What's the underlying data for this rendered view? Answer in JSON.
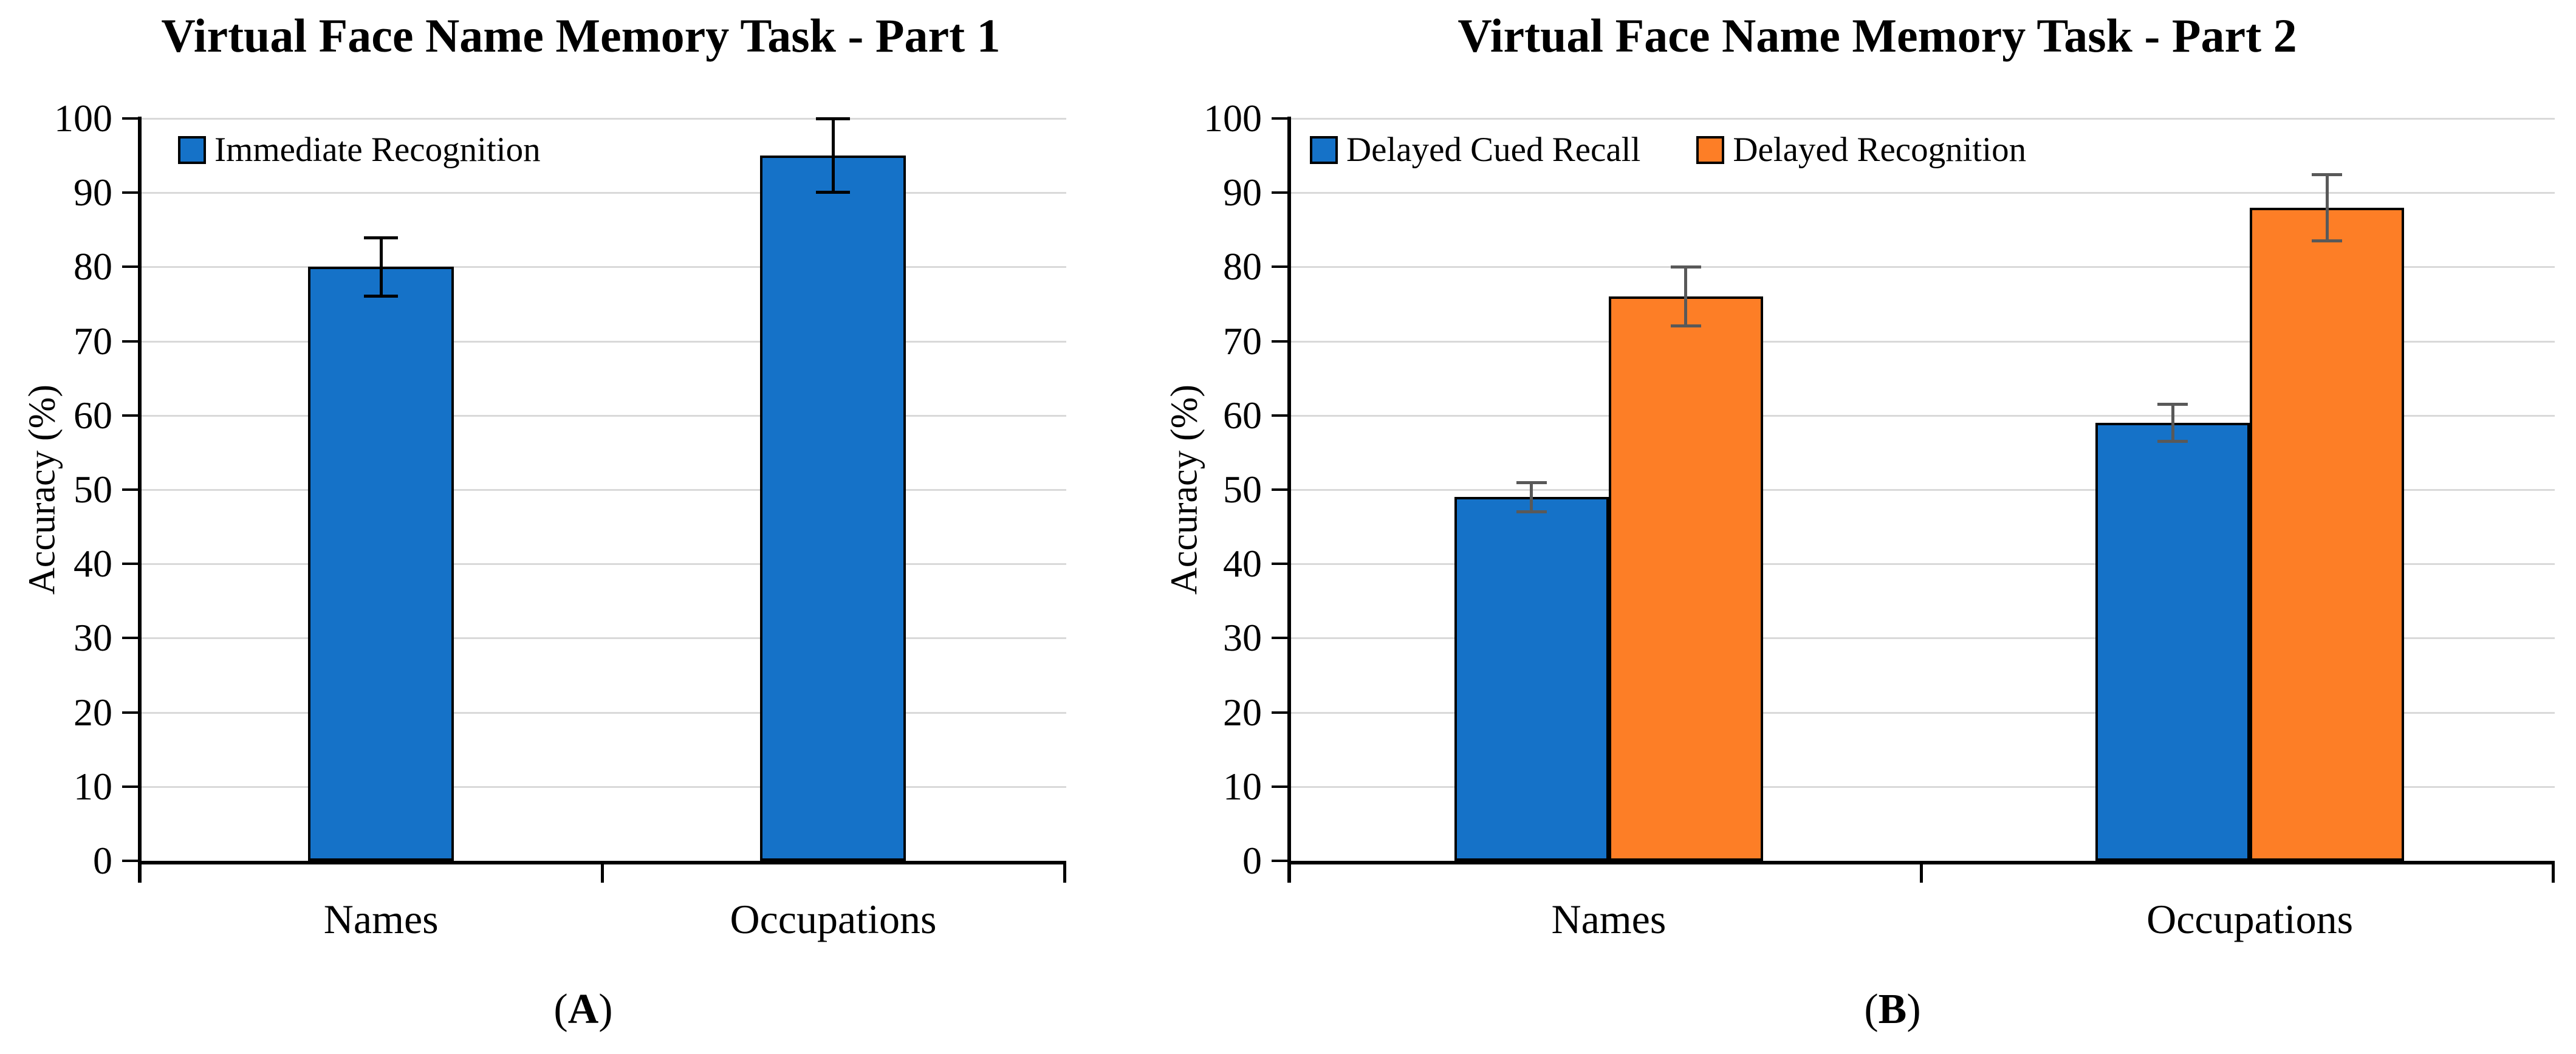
{
  "figure": {
    "background": "#FFFFFF",
    "paren_open": "(",
    "paren_close": ")",
    "colors": {
      "gridline": "#D9D9D9",
      "axis": "#000000",
      "text": "#000000",
      "series_blue": "#1572C8",
      "series_orange": "#FD7E26",
      "error_bar_left_chart": "#000000",
      "error_bar_right_chart": "#595959"
    }
  },
  "chart_data": [
    {
      "type": "bar",
      "panel_letter": "A",
      "panel_label": "(A)",
      "title": "Virtual Face Name Memory Task - Part 1",
      "xlabel": "",
      "ylabel": "Accuracy (%)",
      "ylim": [
        0,
        100
      ],
      "ytick_step": 10,
      "yticks": [
        0,
        10,
        20,
        30,
        40,
        50,
        60,
        70,
        80,
        90,
        100
      ],
      "grid": "horizontal",
      "legend_position": "top-left-inside",
      "categories": [
        "Names",
        "Occupations"
      ],
      "series": [
        {
          "name": "Immediate Recognition",
          "color": "#1572C8",
          "values": [
            80,
            95
          ],
          "errors": [
            4,
            5
          ]
        }
      ],
      "error_color": "#000000"
    },
    {
      "type": "bar",
      "panel_letter": "B",
      "panel_label": "(B)",
      "title": "Virtual Face Name Memory Task - Part 2",
      "xlabel": "",
      "ylabel": "Accuracy (%)",
      "ylim": [
        0,
        100
      ],
      "ytick_step": 10,
      "yticks": [
        0,
        10,
        20,
        30,
        40,
        50,
        60,
        70,
        80,
        90,
        100
      ],
      "grid": "horizontal",
      "legend_position": "top-left-inside",
      "categories": [
        "Names",
        "Occupations"
      ],
      "series": [
        {
          "name": "Delayed Cued Recall",
          "color": "#1572C8",
          "values": [
            49,
            59
          ],
          "errors": [
            2,
            2.5
          ]
        },
        {
          "name": "Delayed Recognition",
          "color": "#FD7E26",
          "values": [
            76,
            88
          ],
          "errors": [
            4,
            4.5
          ]
        }
      ],
      "error_color": "#595959"
    }
  ]
}
